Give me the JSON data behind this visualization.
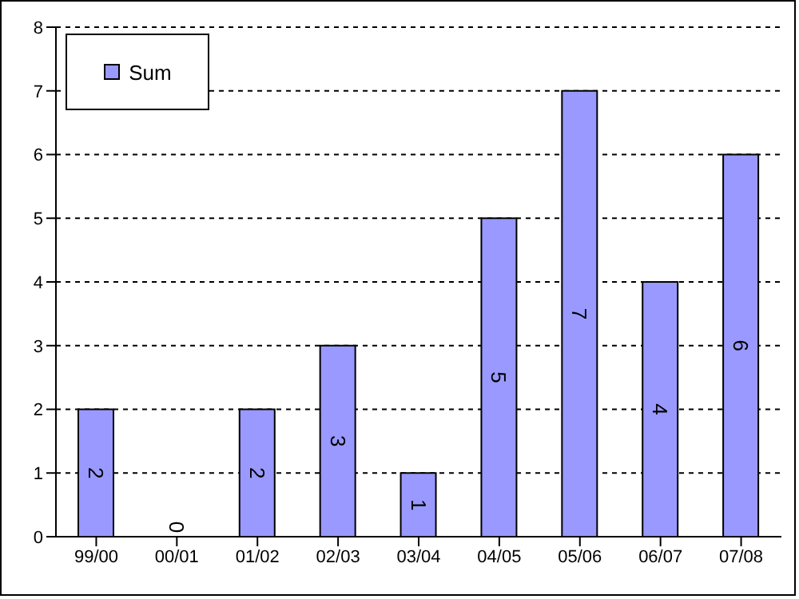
{
  "chart_data": {
    "type": "bar",
    "categories": [
      "99/00",
      "00/01",
      "01/02",
      "02/03",
      "03/04",
      "04/05",
      "05/06",
      "06/07",
      "07/08"
    ],
    "series": [
      {
        "name": "Sum",
        "color": "#9999ff",
        "values": [
          2,
          0,
          2,
          3,
          1,
          5,
          7,
          4,
          6
        ]
      }
    ],
    "ylim": [
      0,
      8
    ],
    "yticks": [
      0,
      1,
      2,
      3,
      4,
      5,
      6,
      7,
      8
    ],
    "grid": "y",
    "legend": "top left",
    "data_labels": true
  }
}
